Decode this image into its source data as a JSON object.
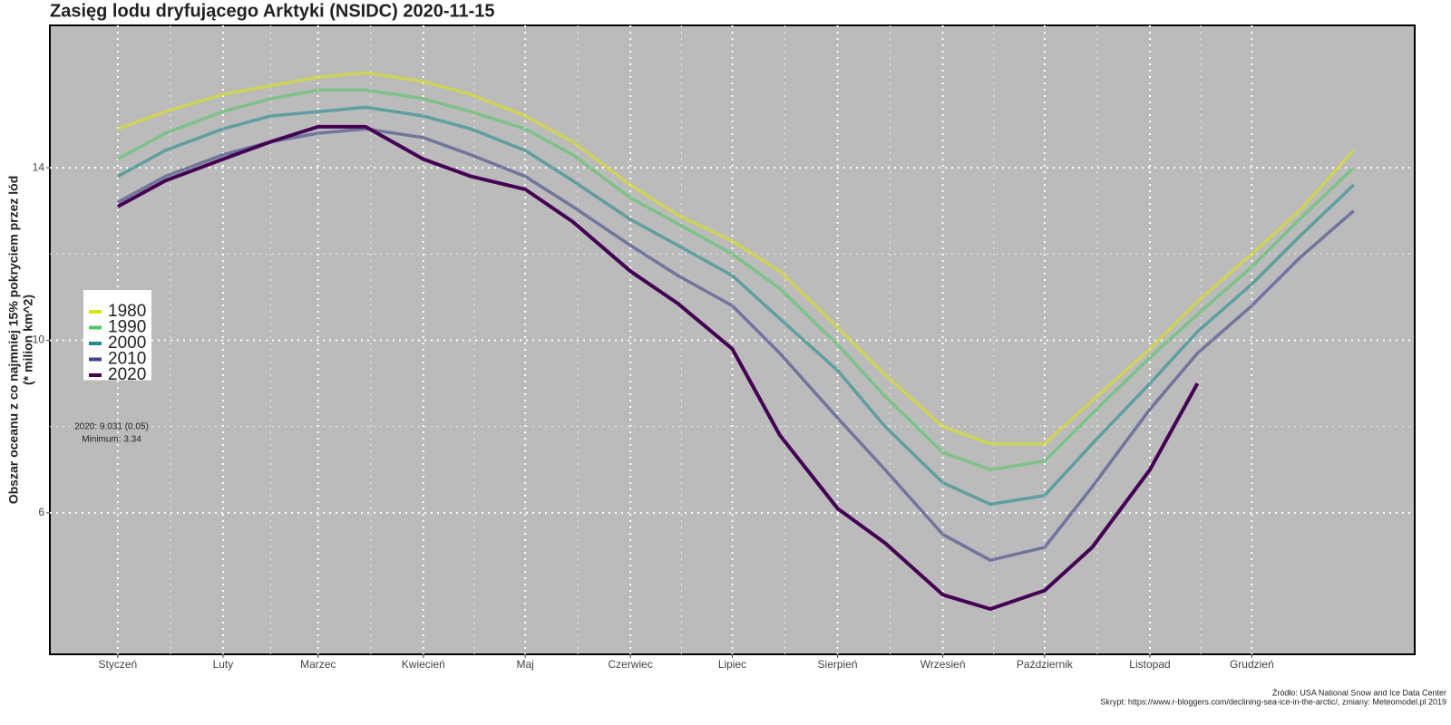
{
  "chart_data": {
    "type": "line",
    "title": "Zasięg lodu dryfującego Arktyki (NSIDC) 2020-11-15",
    "y_label": [
      "Obszar oceanu z co najmniej 15% pokryciem przez lód",
      "(* milion km^2)"
    ],
    "annotations": [
      "2020: 9.031 (0.05)",
      "Minimum: 3.34"
    ],
    "source": [
      "Źródło: USA National Snow and Ice Data Center",
      "Skrypt: https://www.r-bloggers.com/declining-sea-ice-in-the-arctic/, zmiany: Meteomodel.pl 2019"
    ],
    "x": [
      1,
      15,
      32,
      46,
      60,
      74,
      91,
      105,
      121,
      135,
      152,
      166,
      182,
      196,
      213,
      227,
      244,
      258,
      274,
      288,
      305,
      319,
      335,
      349,
      365
    ],
    "series": [
      {
        "name": "1980",
        "color": "#dce319",
        "values": [
          14.9,
          15.3,
          15.7,
          15.9,
          16.1,
          16.2,
          16.0,
          15.7,
          15.2,
          14.6,
          13.6,
          12.9,
          12.3,
          11.6,
          10.3,
          9.2,
          8.0,
          7.6,
          7.6,
          8.6,
          9.8,
          10.9,
          12.0,
          13.0,
          14.4
        ]
      },
      {
        "name": "1990",
        "color": "#55c667",
        "values": [
          14.2,
          14.8,
          15.3,
          15.6,
          15.8,
          15.8,
          15.6,
          15.3,
          14.9,
          14.3,
          13.3,
          12.7,
          12.0,
          11.2,
          9.9,
          8.7,
          7.4,
          7.0,
          7.2,
          8.3,
          9.6,
          10.6,
          11.7,
          12.8,
          14.0
        ]
      },
      {
        "name": "2000",
        "color": "#238a8d",
        "values": [
          13.8,
          14.4,
          14.9,
          15.2,
          15.3,
          15.4,
          15.2,
          14.9,
          14.4,
          13.7,
          12.8,
          12.2,
          11.5,
          10.5,
          9.3,
          8.0,
          6.7,
          6.2,
          6.4,
          7.6,
          9.0,
          10.2,
          11.3,
          12.4,
          13.6
        ]
      },
      {
        "name": "2010",
        "color": "#404688",
        "values": [
          13.2,
          13.8,
          14.3,
          14.6,
          14.8,
          14.9,
          14.7,
          14.3,
          13.8,
          13.1,
          12.2,
          11.5,
          10.8,
          9.7,
          8.2,
          7.0,
          5.5,
          4.9,
          5.2,
          6.6,
          8.4,
          9.7,
          10.8,
          11.9,
          13.0
        ]
      },
      {
        "name": "2020",
        "color": "#440154",
        "values": [
          13.1,
          13.7,
          14.2,
          14.6,
          14.95,
          14.95,
          14.2,
          13.8,
          13.5,
          12.75,
          11.6,
          10.85,
          9.8,
          7.8,
          6.1,
          5.3,
          4.1,
          3.77,
          4.2,
          5.2,
          7.0,
          9.0,
          null,
          null,
          null
        ]
      }
    ],
    "xlim": [
      -19,
      383
    ],
    "xticks": [
      {
        "value": 1,
        "label": "Styczeń"
      },
      {
        "value": 32,
        "label": "Luty"
      },
      {
        "value": 60,
        "label": "Marzec"
      },
      {
        "value": 91,
        "label": "Kwiecień"
      },
      {
        "value": 121,
        "label": "Maj"
      },
      {
        "value": 152,
        "label": "Czerwiec"
      },
      {
        "value": 182,
        "label": "Lipiec"
      },
      {
        "value": 213,
        "label": "Sierpień"
      },
      {
        "value": 244,
        "label": "Wrzesień"
      },
      {
        "value": 274,
        "label": "Październik"
      },
      {
        "value": 305,
        "label": "Listopad"
      },
      {
        "value": 335,
        "label": "Grudzień"
      }
    ],
    "ylim": [
      2.72,
      17.3
    ],
    "yticks": [
      6,
      10,
      14
    ],
    "grid": true,
    "legend": "left"
  }
}
